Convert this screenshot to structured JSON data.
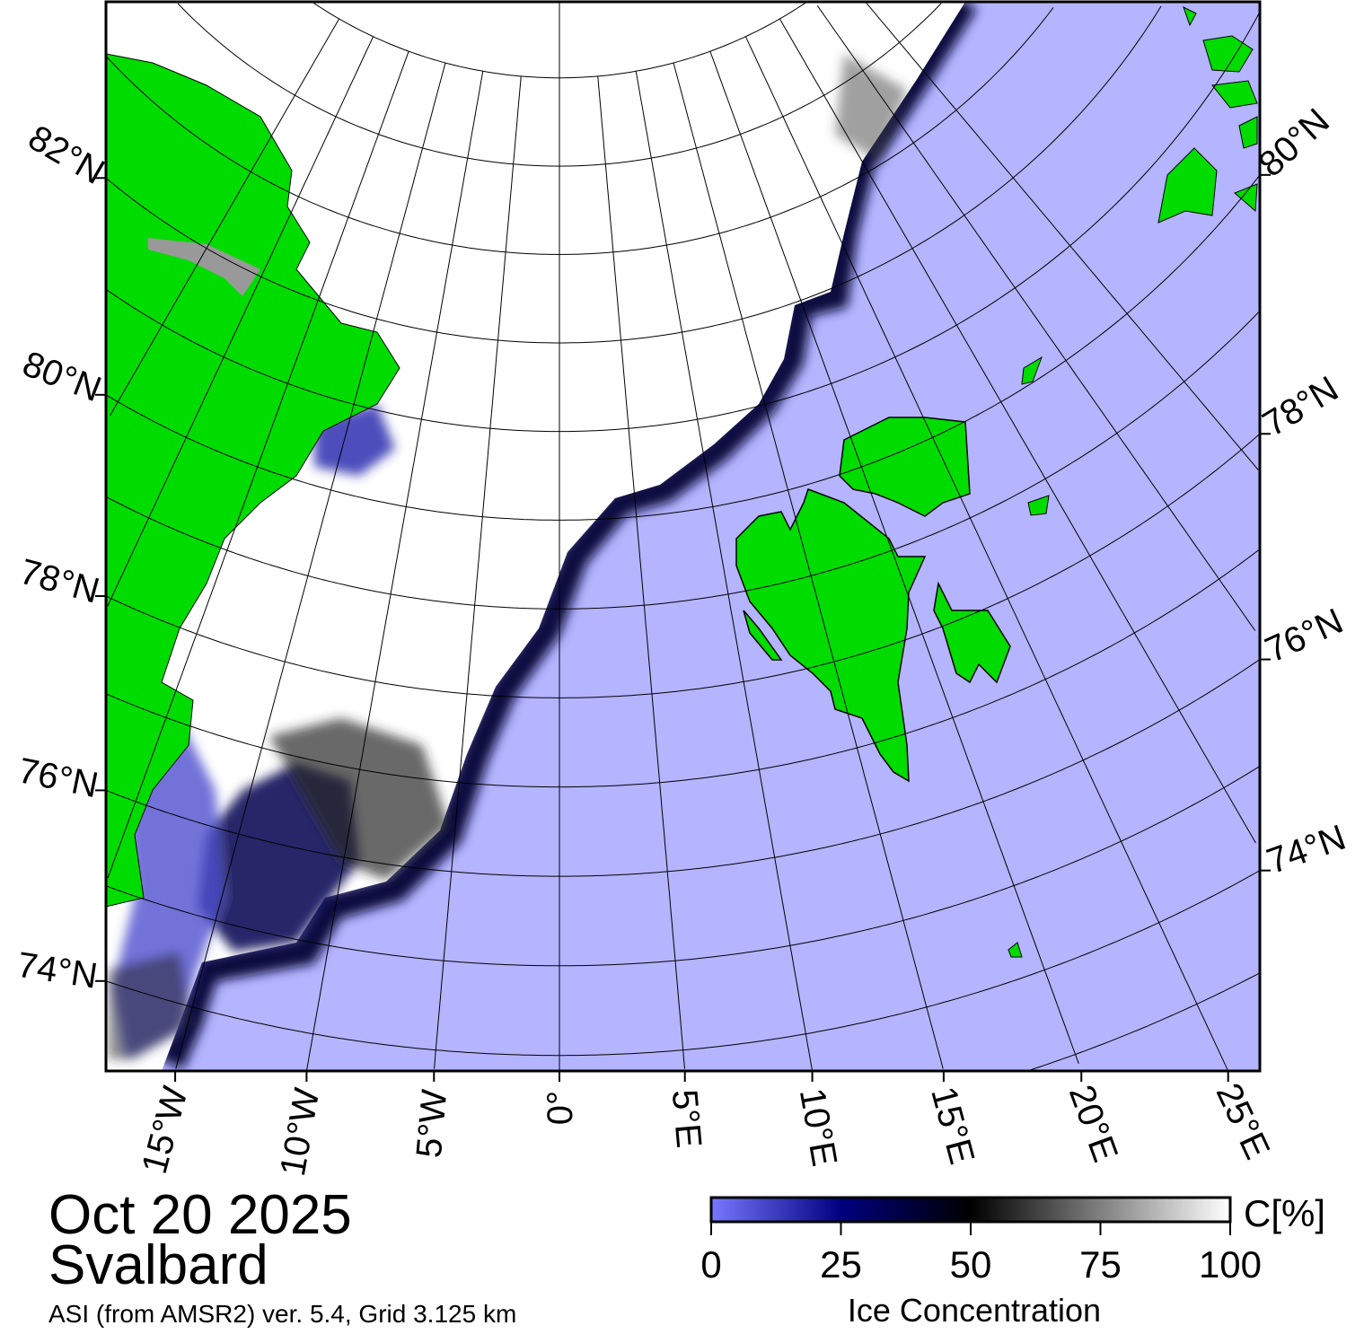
{
  "title": {
    "date": "Oct 20 2025",
    "region": "Svalbard",
    "source": "ASI (from AMSR2) ver. 5.4,  Grid 3.125 km"
  },
  "map": {
    "projection": "polar stereographic",
    "colors": {
      "ocean": "#b4b4ff",
      "land": "#00dc00",
      "ice": "#ffffff",
      "land_ice": "#888888",
      "grid": "#000000"
    },
    "longitude_labels": [
      {
        "lon": -15,
        "text": "15°W"
      },
      {
        "lon": -10,
        "text": "10°W"
      },
      {
        "lon": -5,
        "text": "5°W"
      },
      {
        "lon": 0,
        "text": "0°"
      },
      {
        "lon": 5,
        "text": "5°E"
      },
      {
        "lon": 10,
        "text": "10°E"
      },
      {
        "lon": 15,
        "text": "15°E"
      },
      {
        "lon": 20,
        "text": "20°E"
      },
      {
        "lon": 25,
        "text": "25°E"
      }
    ],
    "latitude_labels_left": [
      {
        "lat": 82,
        "text": "82°N"
      },
      {
        "lat": 80,
        "text": "80°N"
      },
      {
        "lat": 78,
        "text": "78°N"
      },
      {
        "lat": 76,
        "text": "76°N"
      },
      {
        "lat": 74,
        "text": "74°N"
      }
    ],
    "latitude_labels_right": [
      {
        "lat": 80,
        "text": "80°N"
      },
      {
        "lat": 78,
        "text": "78°N"
      },
      {
        "lat": 76,
        "text": "76°N"
      },
      {
        "lat": 74,
        "text": "74°N"
      }
    ]
  },
  "colorbar": {
    "label": "Ice Concentration",
    "unit": "C[%]",
    "range": [
      0,
      100
    ],
    "ticks": [
      "0",
      "25",
      "50",
      "75",
      "100"
    ],
    "colors": [
      "#7878ff",
      "#000080",
      "#000000",
      "#ffffff"
    ]
  }
}
